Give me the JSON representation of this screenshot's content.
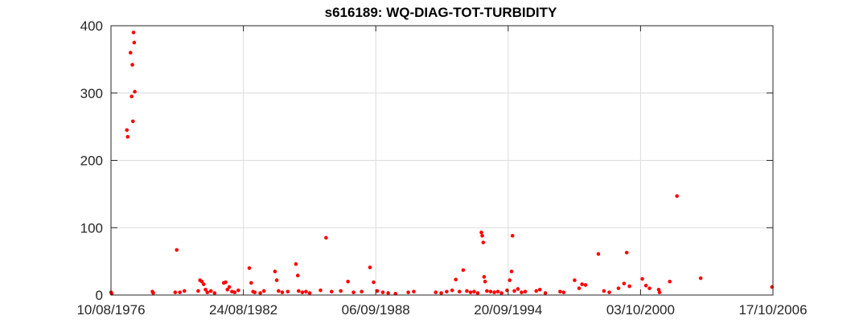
{
  "chart_data": {
    "type": "scatter",
    "title": "s616189: WQ-DIAG-TOT-TURBIDITY",
    "xlabel": "",
    "ylabel": "",
    "x_type": "date",
    "xlim": [
      "1976-08-10",
      "2006-10-17"
    ],
    "ylim": [
      0,
      400
    ],
    "x_ticks": [
      "1976-08-10",
      "1982-08-24",
      "1988-09-06",
      "1994-09-20",
      "2000-10-03",
      "2006-10-17"
    ],
    "x_tick_labels": [
      "10/08/1976",
      "24/08/1982",
      "06/09/1988",
      "20/09/1994",
      "03/10/2000",
      "17/10/2006"
    ],
    "y_ticks": [
      0,
      100,
      200,
      300,
      400
    ],
    "y_tick_labels": [
      "0",
      "100",
      "200",
      "300",
      "400"
    ],
    "grid": true,
    "legend": "none",
    "marker_color": "#ff0000",
    "series": [
      {
        "points": [
          [
            "1976-08-12",
            4
          ],
          [
            "1976-08-20",
            2
          ],
          [
            "1977-05-01",
            245
          ],
          [
            "1977-05-15",
            235
          ],
          [
            "1977-07-01",
            360
          ],
          [
            "1977-07-20",
            295
          ],
          [
            "1977-08-01",
            342
          ],
          [
            "1977-08-10",
            258
          ],
          [
            "1977-08-20",
            390
          ],
          [
            "1977-09-01",
            375
          ],
          [
            "1977-09-10",
            302
          ],
          [
            "1978-07-01",
            5
          ],
          [
            "1978-07-15",
            3
          ],
          [
            "1979-07-15",
            4
          ],
          [
            "1979-08-10",
            67
          ],
          [
            "1979-10-01",
            4
          ],
          [
            "1979-12-15",
            6
          ],
          [
            "1980-08-01",
            6
          ],
          [
            "1980-09-01",
            22
          ],
          [
            "1980-10-01",
            20
          ],
          [
            "1980-11-01",
            16
          ],
          [
            "1980-12-01",
            8
          ],
          [
            "1981-01-01",
            4
          ],
          [
            "1981-03-01",
            6
          ],
          [
            "1981-05-01",
            3
          ],
          [
            "1981-10-01",
            18
          ],
          [
            "1981-11-01",
            19
          ],
          [
            "1981-12-01",
            8
          ],
          [
            "1982-01-01",
            12
          ],
          [
            "1982-02-15",
            5
          ],
          [
            "1982-04-01",
            4
          ],
          [
            "1982-06-01",
            7
          ],
          [
            "1982-12-01",
            40
          ],
          [
            "1983-01-01",
            18
          ],
          [
            "1983-02-01",
            5
          ],
          [
            "1983-03-01",
            4
          ],
          [
            "1983-06-01",
            3
          ],
          [
            "1983-08-01",
            6
          ],
          [
            "1984-02-01",
            35
          ],
          [
            "1984-03-01",
            22
          ],
          [
            "1984-04-01",
            6
          ],
          [
            "1984-06-01",
            4
          ],
          [
            "1984-09-01",
            5
          ],
          [
            "1985-01-15",
            46
          ],
          [
            "1985-02-15",
            29
          ],
          [
            "1985-03-01",
            6
          ],
          [
            "1985-05-01",
            4
          ],
          [
            "1985-07-01",
            5
          ],
          [
            "1985-09-01",
            3
          ],
          [
            "1986-03-01",
            7
          ],
          [
            "1986-06-01",
            85
          ],
          [
            "1986-09-01",
            5
          ],
          [
            "1987-02-01",
            6
          ],
          [
            "1987-06-01",
            20
          ],
          [
            "1987-09-01",
            4
          ],
          [
            "1988-01-15",
            5
          ],
          [
            "1988-06-01",
            41
          ],
          [
            "1988-08-01",
            19
          ],
          [
            "1988-10-01",
            6
          ],
          [
            "1989-01-01",
            4
          ],
          [
            "1989-04-01",
            3
          ],
          [
            "1989-08-01",
            2
          ],
          [
            "1990-03-01",
            4
          ],
          [
            "1990-06-01",
            5
          ],
          [
            "1991-06-01",
            4
          ],
          [
            "1991-09-01",
            3
          ],
          [
            "1991-12-01",
            5
          ],
          [
            "1992-03-01",
            7
          ],
          [
            "1992-05-01",
            23
          ],
          [
            "1992-07-01",
            5
          ],
          [
            "1992-09-01",
            37
          ],
          [
            "1992-11-01",
            6
          ],
          [
            "1993-01-01",
            4
          ],
          [
            "1993-03-01",
            5
          ],
          [
            "1993-05-01",
            3
          ],
          [
            "1993-07-01",
            93
          ],
          [
            "1993-07-15",
            88
          ],
          [
            "1993-08-01",
            78
          ],
          [
            "1993-08-15",
            27
          ],
          [
            "1993-09-01",
            20
          ],
          [
            "1993-10-01",
            6
          ],
          [
            "1993-12-01",
            5
          ],
          [
            "1994-02-01",
            4
          ],
          [
            "1994-04-01",
            5
          ],
          [
            "1994-06-01",
            3
          ],
          [
            "1994-09-01",
            7
          ],
          [
            "1994-10-15",
            22
          ],
          [
            "1994-11-15",
            35
          ],
          [
            "1994-12-01",
            88
          ],
          [
            "1995-01-01",
            6
          ],
          [
            "1995-03-01",
            9
          ],
          [
            "1995-05-01",
            4
          ],
          [
            "1995-07-01",
            5
          ],
          [
            "1996-01-01",
            6
          ],
          [
            "1996-03-01",
            8
          ],
          [
            "1996-06-01",
            3
          ],
          [
            "1997-02-01",
            5
          ],
          [
            "1997-04-01",
            4
          ],
          [
            "1997-10-01",
            22
          ],
          [
            "1997-12-15",
            10
          ],
          [
            "1998-02-01",
            16
          ],
          [
            "1998-04-01",
            15
          ],
          [
            "1998-11-01",
            61
          ],
          [
            "1999-02-01",
            6
          ],
          [
            "1999-05-01",
            4
          ],
          [
            "1999-10-01",
            10
          ],
          [
            "2000-01-01",
            17
          ],
          [
            "2000-02-15",
            63
          ],
          [
            "2000-04-01",
            13
          ],
          [
            "2000-11-01",
            24
          ],
          [
            "2001-01-01",
            14
          ],
          [
            "2001-03-01",
            10
          ],
          [
            "2001-08-01",
            8
          ],
          [
            "2001-08-15",
            4
          ],
          [
            "2002-02-01",
            20
          ],
          [
            "2002-06-01",
            147
          ],
          [
            "2003-07-01",
            25
          ],
          [
            "2006-10-01",
            12
          ]
        ]
      }
    ]
  }
}
